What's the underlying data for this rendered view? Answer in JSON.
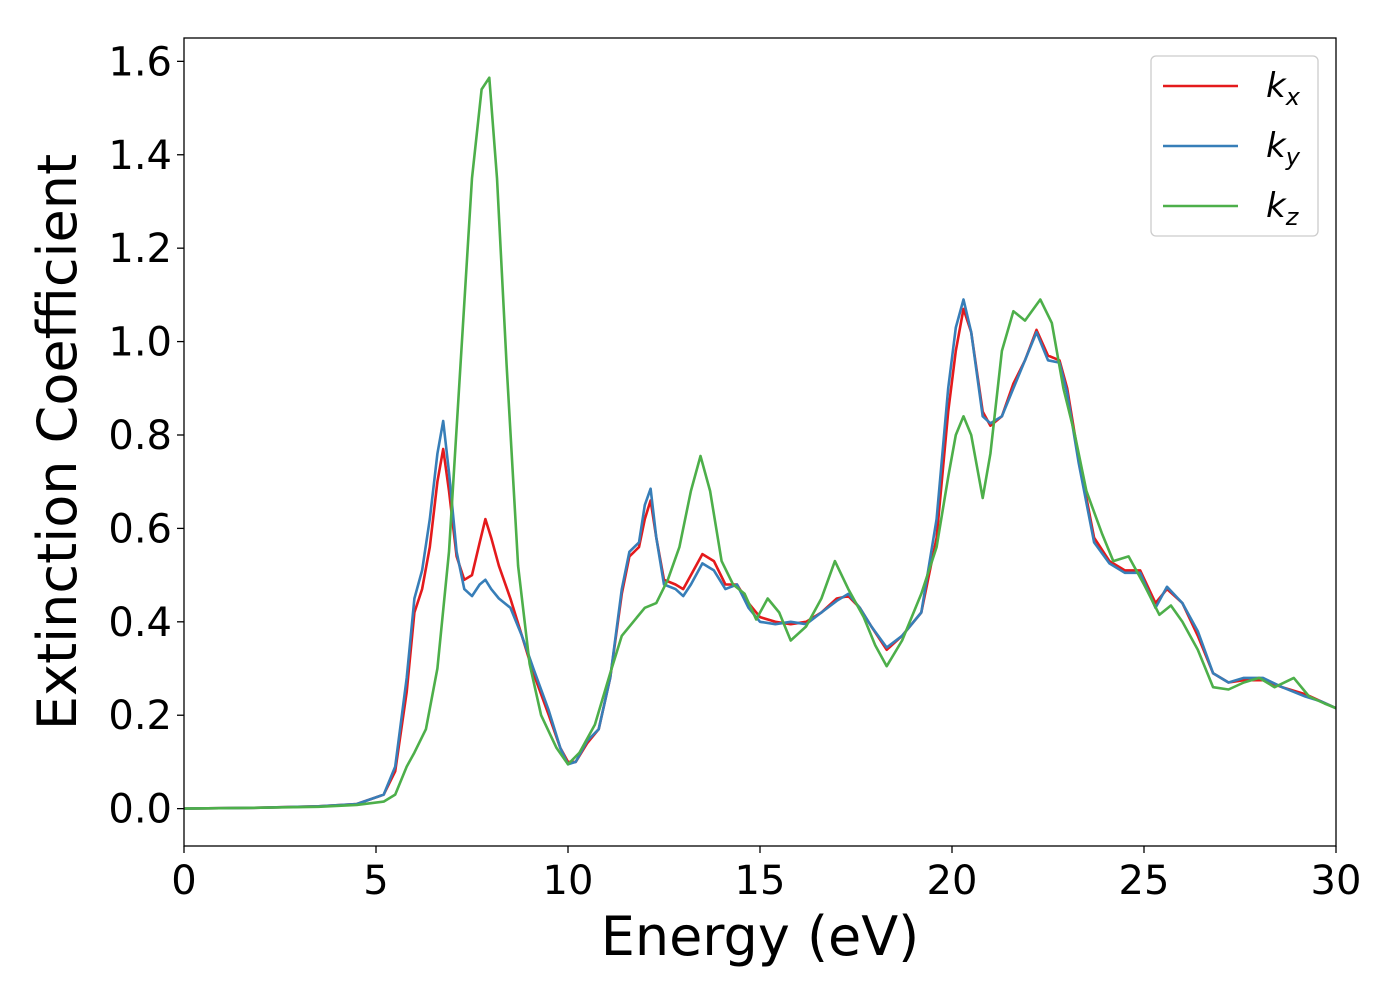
{
  "chart_data": {
    "type": "line",
    "xlabel": "Energy (eV)",
    "ylabel": "Extinction Coefficient",
    "xlim": [
      0,
      30
    ],
    "ylim": [
      -0.08,
      1.65
    ],
    "x_ticks": [
      0,
      5,
      10,
      15,
      20,
      25,
      30
    ],
    "y_ticks": [
      0.0,
      0.2,
      0.4,
      0.6,
      0.8,
      1.0,
      1.2,
      1.4,
      1.6
    ],
    "x_tick_labels": [
      "0",
      "5",
      "10",
      "15",
      "20",
      "25",
      "30"
    ],
    "y_tick_labels": [
      "0.0",
      "0.2",
      "0.4",
      "0.6",
      "0.8",
      "1.0",
      "1.2",
      "1.4",
      "1.6"
    ],
    "grid": false,
    "legend_position": "top-right",
    "series": [
      {
        "name": "k_x",
        "label_base": "k",
        "label_sub": "x",
        "color": "#e41a1c",
        "points": [
          [
            0,
            0
          ],
          [
            2,
            0.002
          ],
          [
            3.5,
            0.005
          ],
          [
            4.5,
            0.01
          ],
          [
            5.2,
            0.03
          ],
          [
            5.5,
            0.08
          ],
          [
            5.8,
            0.25
          ],
          [
            6.0,
            0.42
          ],
          [
            6.2,
            0.47
          ],
          [
            6.4,
            0.56
          ],
          [
            6.6,
            0.7
          ],
          [
            6.75,
            0.77
          ],
          [
            6.9,
            0.68
          ],
          [
            7.1,
            0.54
          ],
          [
            7.3,
            0.49
          ],
          [
            7.5,
            0.5
          ],
          [
            7.7,
            0.57
          ],
          [
            7.85,
            0.62
          ],
          [
            8.0,
            0.58
          ],
          [
            8.2,
            0.52
          ],
          [
            8.5,
            0.45
          ],
          [
            8.8,
            0.37
          ],
          [
            9.1,
            0.29
          ],
          [
            9.5,
            0.2
          ],
          [
            9.8,
            0.13
          ],
          [
            10.0,
            0.1
          ],
          [
            10.2,
            0.1
          ],
          [
            10.5,
            0.14
          ],
          [
            10.8,
            0.17
          ],
          [
            11.1,
            0.28
          ],
          [
            11.4,
            0.46
          ],
          [
            11.6,
            0.54
          ],
          [
            11.85,
            0.56
          ],
          [
            12.0,
            0.62
          ],
          [
            12.15,
            0.66
          ],
          [
            12.3,
            0.58
          ],
          [
            12.5,
            0.49
          ],
          [
            12.8,
            0.48
          ],
          [
            13.0,
            0.47
          ],
          [
            13.2,
            0.5
          ],
          [
            13.5,
            0.545
          ],
          [
            13.8,
            0.53
          ],
          [
            14.1,
            0.48
          ],
          [
            14.4,
            0.48
          ],
          [
            14.7,
            0.44
          ],
          [
            15.0,
            0.41
          ],
          [
            15.4,
            0.4
          ],
          [
            15.8,
            0.395
          ],
          [
            16.2,
            0.4
          ],
          [
            16.6,
            0.42
          ],
          [
            17.0,
            0.45
          ],
          [
            17.3,
            0.455
          ],
          [
            17.6,
            0.43
          ],
          [
            17.9,
            0.39
          ],
          [
            18.3,
            0.34
          ],
          [
            18.7,
            0.37
          ],
          [
            19.2,
            0.42
          ],
          [
            19.6,
            0.58
          ],
          [
            19.9,
            0.85
          ],
          [
            20.1,
            0.98
          ],
          [
            20.3,
            1.07
          ],
          [
            20.5,
            1.02
          ],
          [
            20.8,
            0.85
          ],
          [
            21.0,
            0.82
          ],
          [
            21.3,
            0.84
          ],
          [
            21.6,
            0.91
          ],
          [
            21.9,
            0.96
          ],
          [
            22.2,
            1.025
          ],
          [
            22.5,
            0.97
          ],
          [
            22.8,
            0.96
          ],
          [
            23.0,
            0.9
          ],
          [
            23.3,
            0.75
          ],
          [
            23.7,
            0.58
          ],
          [
            24.1,
            0.53
          ],
          [
            24.5,
            0.51
          ],
          [
            24.9,
            0.51
          ],
          [
            25.3,
            0.44
          ],
          [
            25.6,
            0.47
          ],
          [
            26.0,
            0.44
          ],
          [
            26.4,
            0.37
          ],
          [
            26.8,
            0.29
          ],
          [
            27.2,
            0.27
          ],
          [
            27.6,
            0.275
          ],
          [
            28.1,
            0.275
          ],
          [
            28.6,
            0.26
          ],
          [
            29.2,
            0.245
          ],
          [
            29.6,
            0.23
          ],
          [
            30,
            0.215
          ]
        ]
      },
      {
        "name": "k_y",
        "label_base": "k",
        "label_sub": "y",
        "color": "#377eb8",
        "points": [
          [
            0,
            0
          ],
          [
            2,
            0.002
          ],
          [
            3.5,
            0.005
          ],
          [
            4.5,
            0.01
          ],
          [
            5.2,
            0.03
          ],
          [
            5.5,
            0.09
          ],
          [
            5.8,
            0.28
          ],
          [
            6.0,
            0.45
          ],
          [
            6.2,
            0.51
          ],
          [
            6.4,
            0.62
          ],
          [
            6.6,
            0.76
          ],
          [
            6.75,
            0.83
          ],
          [
            6.9,
            0.72
          ],
          [
            7.1,
            0.55
          ],
          [
            7.3,
            0.47
          ],
          [
            7.5,
            0.455
          ],
          [
            7.7,
            0.48
          ],
          [
            7.85,
            0.49
          ],
          [
            8.0,
            0.47
          ],
          [
            8.2,
            0.45
          ],
          [
            8.5,
            0.43
          ],
          [
            8.8,
            0.37
          ],
          [
            9.1,
            0.3
          ],
          [
            9.5,
            0.21
          ],
          [
            9.8,
            0.13
          ],
          [
            10.0,
            0.095
          ],
          [
            10.2,
            0.1
          ],
          [
            10.5,
            0.145
          ],
          [
            10.8,
            0.17
          ],
          [
            11.1,
            0.28
          ],
          [
            11.4,
            0.47
          ],
          [
            11.6,
            0.55
          ],
          [
            11.85,
            0.57
          ],
          [
            12.0,
            0.65
          ],
          [
            12.15,
            0.685
          ],
          [
            12.3,
            0.58
          ],
          [
            12.5,
            0.48
          ],
          [
            12.8,
            0.47
          ],
          [
            13.0,
            0.455
          ],
          [
            13.2,
            0.48
          ],
          [
            13.5,
            0.525
          ],
          [
            13.8,
            0.51
          ],
          [
            14.1,
            0.47
          ],
          [
            14.4,
            0.48
          ],
          [
            14.7,
            0.43
          ],
          [
            15.0,
            0.4
          ],
          [
            15.4,
            0.395
          ],
          [
            15.8,
            0.4
          ],
          [
            16.2,
            0.395
          ],
          [
            16.6,
            0.42
          ],
          [
            17.0,
            0.445
          ],
          [
            17.3,
            0.46
          ],
          [
            17.6,
            0.43
          ],
          [
            17.9,
            0.39
          ],
          [
            18.3,
            0.345
          ],
          [
            18.7,
            0.37
          ],
          [
            19.2,
            0.42
          ],
          [
            19.6,
            0.62
          ],
          [
            19.9,
            0.9
          ],
          [
            20.1,
            1.03
          ],
          [
            20.3,
            1.09
          ],
          [
            20.5,
            1.02
          ],
          [
            20.8,
            0.84
          ],
          [
            21.0,
            0.825
          ],
          [
            21.3,
            0.84
          ],
          [
            21.6,
            0.9
          ],
          [
            21.9,
            0.96
          ],
          [
            22.2,
            1.02
          ],
          [
            22.5,
            0.96
          ],
          [
            22.8,
            0.955
          ],
          [
            23.0,
            0.89
          ],
          [
            23.3,
            0.74
          ],
          [
            23.7,
            0.57
          ],
          [
            24.1,
            0.525
          ],
          [
            24.5,
            0.505
          ],
          [
            24.9,
            0.505
          ],
          [
            25.3,
            0.43
          ],
          [
            25.6,
            0.475
          ],
          [
            26.0,
            0.44
          ],
          [
            26.4,
            0.38
          ],
          [
            26.8,
            0.29
          ],
          [
            27.2,
            0.27
          ],
          [
            27.6,
            0.28
          ],
          [
            28.1,
            0.28
          ],
          [
            28.6,
            0.26
          ],
          [
            29.2,
            0.24
          ],
          [
            29.6,
            0.23
          ],
          [
            30,
            0.215
          ]
        ]
      },
      {
        "name": "k_z",
        "label_base": "k",
        "label_sub": "z",
        "color": "#4daf4a",
        "points": [
          [
            0,
            0
          ],
          [
            2,
            0.002
          ],
          [
            3.5,
            0.004
          ],
          [
            4.5,
            0.008
          ],
          [
            5.2,
            0.015
          ],
          [
            5.5,
            0.03
          ],
          [
            5.8,
            0.09
          ],
          [
            6.0,
            0.12
          ],
          [
            6.3,
            0.17
          ],
          [
            6.6,
            0.3
          ],
          [
            6.9,
            0.55
          ],
          [
            7.2,
            0.95
          ],
          [
            7.5,
            1.35
          ],
          [
            7.75,
            1.54
          ],
          [
            7.95,
            1.565
          ],
          [
            8.15,
            1.35
          ],
          [
            8.4,
            0.95
          ],
          [
            8.7,
            0.52
          ],
          [
            9.0,
            0.31
          ],
          [
            9.3,
            0.2
          ],
          [
            9.7,
            0.13
          ],
          [
            10.0,
            0.095
          ],
          [
            10.3,
            0.12
          ],
          [
            10.7,
            0.18
          ],
          [
            11.1,
            0.29
          ],
          [
            11.4,
            0.37
          ],
          [
            11.7,
            0.4
          ],
          [
            12.0,
            0.43
          ],
          [
            12.3,
            0.44
          ],
          [
            12.6,
            0.49
          ],
          [
            12.9,
            0.56
          ],
          [
            13.2,
            0.68
          ],
          [
            13.45,
            0.755
          ],
          [
            13.7,
            0.68
          ],
          [
            14.0,
            0.53
          ],
          [
            14.3,
            0.48
          ],
          [
            14.6,
            0.46
          ],
          [
            14.9,
            0.405
          ],
          [
            15.2,
            0.45
          ],
          [
            15.5,
            0.42
          ],
          [
            15.8,
            0.36
          ],
          [
            16.2,
            0.39
          ],
          [
            16.6,
            0.45
          ],
          [
            16.95,
            0.53
          ],
          [
            17.3,
            0.47
          ],
          [
            17.7,
            0.41
          ],
          [
            18.0,
            0.35
          ],
          [
            18.3,
            0.305
          ],
          [
            18.7,
            0.36
          ],
          [
            19.2,
            0.46
          ],
          [
            19.6,
            0.56
          ],
          [
            19.9,
            0.71
          ],
          [
            20.1,
            0.8
          ],
          [
            20.3,
            0.84
          ],
          [
            20.5,
            0.8
          ],
          [
            20.8,
            0.665
          ],
          [
            21.0,
            0.76
          ],
          [
            21.3,
            0.98
          ],
          [
            21.6,
            1.065
          ],
          [
            21.9,
            1.045
          ],
          [
            22.3,
            1.09
          ],
          [
            22.6,
            1.04
          ],
          [
            22.9,
            0.9
          ],
          [
            23.2,
            0.8
          ],
          [
            23.5,
            0.68
          ],
          [
            23.9,
            0.59
          ],
          [
            24.2,
            0.53
          ],
          [
            24.6,
            0.54
          ],
          [
            25.0,
            0.48
          ],
          [
            25.4,
            0.415
          ],
          [
            25.7,
            0.435
          ],
          [
            26.0,
            0.4
          ],
          [
            26.4,
            0.34
          ],
          [
            26.8,
            0.26
          ],
          [
            27.2,
            0.255
          ],
          [
            27.6,
            0.27
          ],
          [
            28.0,
            0.28
          ],
          [
            28.4,
            0.26
          ],
          [
            28.9,
            0.28
          ],
          [
            29.3,
            0.24
          ],
          [
            29.7,
            0.225
          ],
          [
            30,
            0.215
          ]
        ]
      }
    ]
  }
}
